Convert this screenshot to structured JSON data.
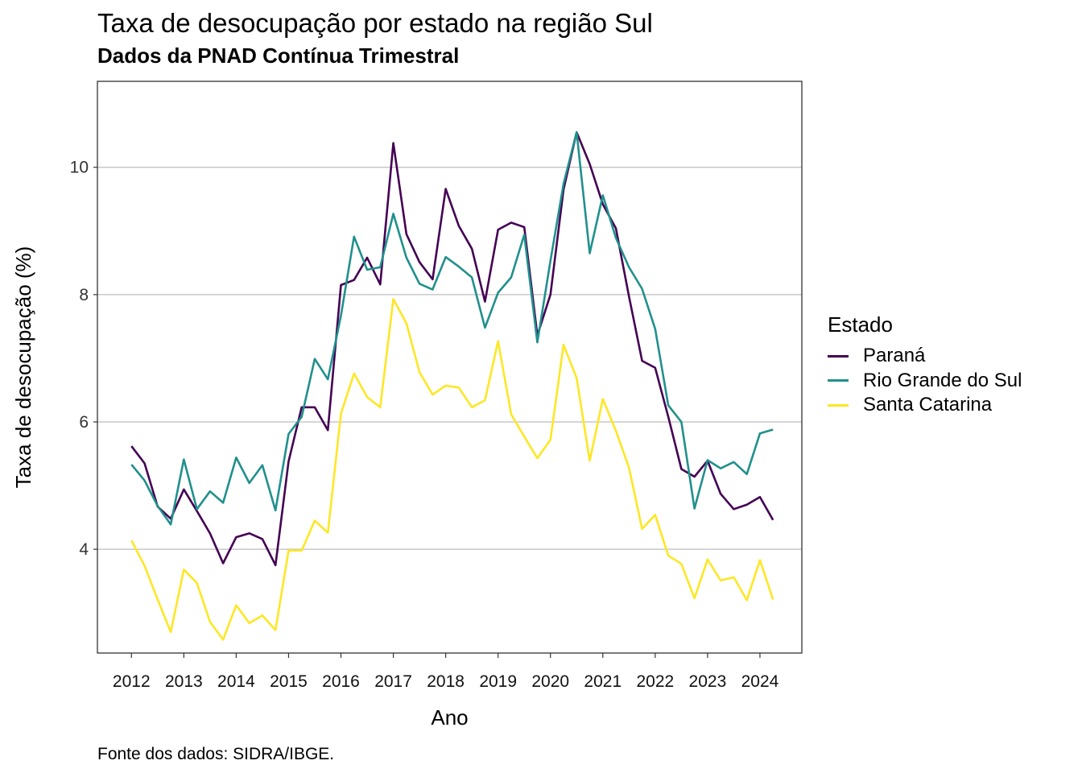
{
  "chart_data": {
    "type": "line",
    "title": "Taxa de desocupação por estado na região Sul",
    "subtitle": "Dados da PNAD Contínua Trimestral",
    "caption": "Fonte dos dados: SIDRA/IBGE.",
    "xlabel": "Ano",
    "ylabel": "Taxa de desocupação (%)",
    "x_ticks": [
      "2012",
      "2013",
      "2014",
      "2015",
      "2016",
      "2017",
      "2018",
      "2019",
      "2020",
      "2021",
      "2022",
      "2023",
      "2024"
    ],
    "y_ticks": [
      4,
      6,
      8,
      10
    ],
    "xlim": [
      2011.35,
      2024.8
    ],
    "ylim": [
      2.37,
      11.35
    ],
    "grid": "horizontal major",
    "legend_title": "Estado",
    "legend_position": "right",
    "x": [
      "2012-Q1",
      "2012-Q2",
      "2012-Q3",
      "2012-Q4",
      "2013-Q1",
      "2013-Q2",
      "2013-Q3",
      "2013-Q4",
      "2014-Q1",
      "2014-Q2",
      "2014-Q3",
      "2014-Q4",
      "2015-Q1",
      "2015-Q2",
      "2015-Q3",
      "2015-Q4",
      "2016-Q1",
      "2016-Q2",
      "2016-Q3",
      "2016-Q4",
      "2017-Q1",
      "2017-Q2",
      "2017-Q3",
      "2017-Q4",
      "2018-Q1",
      "2018-Q2",
      "2018-Q3",
      "2018-Q4",
      "2019-Q1",
      "2019-Q2",
      "2019-Q3",
      "2019-Q4",
      "2020-Q1",
      "2020-Q2",
      "2020-Q3",
      "2020-Q4",
      "2021-Q1",
      "2021-Q2",
      "2021-Q3",
      "2021-Q4",
      "2022-Q1",
      "2022-Q2",
      "2022-Q3",
      "2022-Q4",
      "2023-Q1",
      "2023-Q2",
      "2023-Q3",
      "2023-Q4",
      "2024-Q1",
      "2024-Q2"
    ],
    "series": [
      {
        "name": "Paraná",
        "color": "#440154",
        "values": [
          5.62,
          5.35,
          4.67,
          4.48,
          4.94,
          4.6,
          4.25,
          3.78,
          4.19,
          4.25,
          4.16,
          3.75,
          5.38,
          6.23,
          6.23,
          5.87,
          8.15,
          8.23,
          8.58,
          8.16,
          10.38,
          8.95,
          8.51,
          8.24,
          9.66,
          9.08,
          8.72,
          7.89,
          9.02,
          9.13,
          9.06,
          7.36,
          8.0,
          9.65,
          10.55,
          10.05,
          9.42,
          9.04,
          7.97,
          6.96,
          6.85,
          6.08,
          5.26,
          5.14,
          5.39,
          4.87,
          4.63,
          4.7,
          4.82,
          4.46
        ]
      },
      {
        "name": "Rio Grande do Sul",
        "color": "#21908C",
        "values": [
          5.33,
          5.08,
          4.68,
          4.39,
          5.41,
          4.63,
          4.91,
          4.73,
          5.44,
          5.04,
          5.32,
          4.61,
          5.81,
          6.08,
          6.99,
          6.67,
          7.67,
          8.91,
          8.39,
          8.43,
          9.27,
          8.58,
          8.17,
          8.08,
          8.59,
          8.44,
          8.27,
          7.48,
          8.03,
          8.27,
          8.94,
          7.25,
          8.53,
          9.74,
          10.55,
          8.65,
          9.56,
          8.89,
          8.43,
          8.09,
          7.46,
          6.26,
          6.0,
          4.64,
          5.4,
          5.27,
          5.37,
          5.18,
          5.82,
          5.88
        ]
      },
      {
        "name": "Santa Catarina",
        "color": "#FDE725",
        "values": [
          4.14,
          3.74,
          3.21,
          2.7,
          3.68,
          3.47,
          2.86,
          2.58,
          3.12,
          2.84,
          2.96,
          2.73,
          3.98,
          3.98,
          4.45,
          4.26,
          6.13,
          6.76,
          6.39,
          6.23,
          7.93,
          7.55,
          6.78,
          6.43,
          6.57,
          6.54,
          6.23,
          6.34,
          7.27,
          6.12,
          5.77,
          5.43,
          5.72,
          7.21,
          6.69,
          5.39,
          6.36,
          5.86,
          5.28,
          4.32,
          4.54,
          3.9,
          3.77,
          3.23,
          3.84,
          3.51,
          3.56,
          3.2,
          3.83,
          3.21
        ]
      }
    ]
  }
}
